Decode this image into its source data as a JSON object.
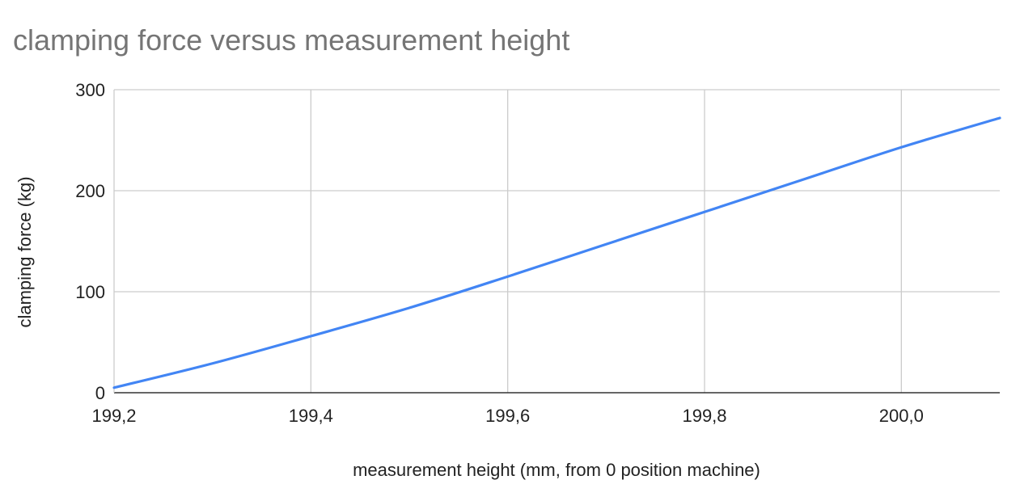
{
  "chart_data": {
    "type": "line",
    "title": "clamping force versus measurement height",
    "xlabel": "measurement height (mm, from 0 position machine)",
    "ylabel": "clamping force (kg)",
    "xlim": [
      199.2,
      200.1
    ],
    "ylim": [
      0,
      300
    ],
    "x_ticks": [
      199.2,
      199.4,
      199.6,
      199.8,
      200.0
    ],
    "x_tick_labels": [
      "199,2",
      "199,4",
      "199,6",
      "199,8",
      "200,0"
    ],
    "y_ticks": [
      0,
      100,
      200,
      300
    ],
    "y_tick_labels": [
      "0",
      "100",
      "200",
      "300"
    ],
    "grid": true,
    "legend": "none",
    "colors": {
      "line": "#4285f4",
      "grid": "#cccccc",
      "axis": "#333333",
      "title": "#757575",
      "text": "#222222"
    },
    "series": [
      {
        "x": [
          199.2,
          199.3,
          199.4,
          199.5,
          199.6,
          199.7,
          199.8,
          199.9,
          200.0,
          200.1
        ],
        "values": [
          5,
          29,
          56,
          84,
          115,
          147,
          179,
          211,
          243,
          272
        ]
      }
    ]
  }
}
